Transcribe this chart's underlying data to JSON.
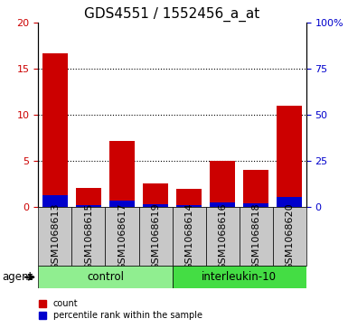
{
  "title": "GDS4551 / 1552456_a_at",
  "samples": [
    "GSM1068613",
    "GSM1068615",
    "GSM1068617",
    "GSM1068619",
    "GSM1068614",
    "GSM1068616",
    "GSM1068618",
    "GSM1068620"
  ],
  "count_values": [
    16.7,
    2.0,
    7.2,
    2.5,
    1.9,
    5.0,
    4.0,
    11.0
  ],
  "percentile_values": [
    6.3,
    1.0,
    3.1,
    1.2,
    1.0,
    2.1,
    1.7,
    5.1
  ],
  "groups": [
    {
      "label": "control",
      "indices": [
        0,
        1,
        2,
        3
      ],
      "color": "#90ee90"
    },
    {
      "label": "interleukin-10",
      "indices": [
        4,
        5,
        6,
        7
      ],
      "color": "#44dd44"
    }
  ],
  "ylim_left": [
    0,
    20
  ],
  "ylim_right": [
    0,
    100
  ],
  "yticks_left": [
    0,
    5,
    10,
    15,
    20
  ],
  "yticks_right": [
    0,
    25,
    50,
    75,
    100
  ],
  "yticklabels_right": [
    "0",
    "25",
    "50",
    "75",
    "100%"
  ],
  "bar_color_red": "#cc0000",
  "bar_color_blue": "#0000cc",
  "bar_bg_color": "#c8c8c8",
  "agent_label": "agent",
  "legend_count": "count",
  "legend_percentile": "percentile rank within the sample",
  "title_fontsize": 11,
  "axis_tick_fontsize": 8,
  "label_fontsize": 8.5,
  "grid_yticks": [
    5,
    10,
    15
  ]
}
